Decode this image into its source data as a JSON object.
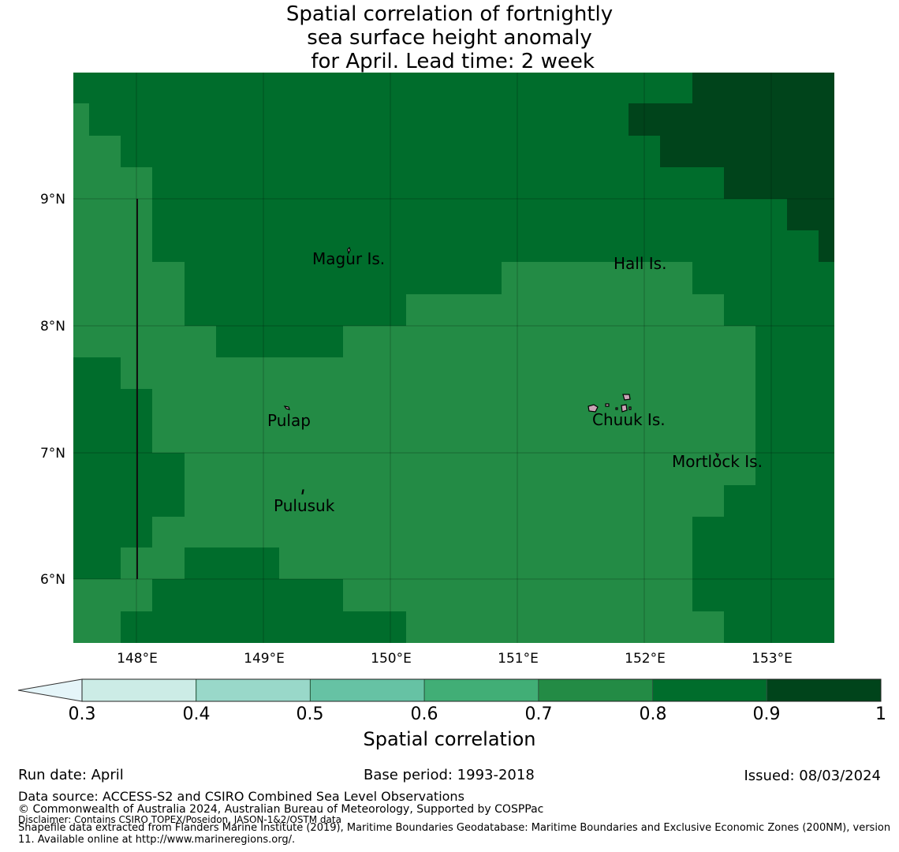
{
  "title": {
    "lines": [
      "Spatial correlation of fortnightly",
      "sea surface height anomaly",
      " for April. Lead time: 2 week"
    ]
  },
  "map": {
    "x_ticks": [
      "148°E",
      "149°E",
      "150°E",
      "151°E",
      "152°E",
      "153°E"
    ],
    "y_ticks": [
      "9°N",
      "8°N",
      "7°N",
      "6°N"
    ],
    "places": [
      "Magur Is.",
      "Hall Is.",
      "Pulap",
      "Chuuk Is.",
      "Mortlock Is.",
      "Pulusuk"
    ],
    "colors": {
      "c08": "#238b45",
      "c09": "#006d2c",
      "c10": "#00441b"
    }
  },
  "colorbar": {
    "ticks": [
      "0.3",
      "0.4",
      "0.5",
      "0.6",
      "0.7",
      "0.8",
      "0.9",
      "1"
    ],
    "bin_colors": [
      "#ccece6",
      "#99d8c9",
      "#66c2a4",
      "#41ae76",
      "#238b45",
      "#006d2c",
      "#00441b"
    ],
    "extend_color": "#e5f5f9",
    "label": "Spatial correlation"
  },
  "footer": {
    "run_date": "Run date: April",
    "base_period": "Base period: 1993-2018",
    "issued": "Issued: 08/03/2024",
    "data_source": "Data source: ACCESS-S2 and CSIRO Combined Sea Level Observations",
    "copyright": "© Commonwealth of Australia 2024, Australian Bureau of Meteorology, Supported by COSPPac",
    "disclaimer": "Disclaimer: Contains CSIRO TOPEX/Poseidon, JASON-1&2/OSTM data",
    "shapefile": "Shapefile data extracted from Flanders Marine Institute (2019), Maritime Boundaries Geodatabase: Maritime Boundaries and Exclusive Economic Zones (200NM), version 11. Available online at http://www.marineregions.org/."
  }
}
